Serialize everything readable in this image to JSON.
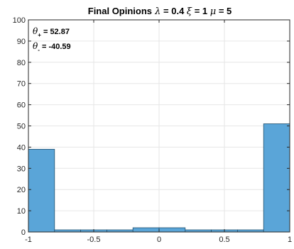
{
  "chart_data": {
    "type": "bar",
    "title_parts": [
      {
        "text": "Final Opinions",
        "greek": false
      },
      {
        "text": "  λ",
        "greek": true
      },
      {
        "text": " = 0.4 ",
        "greek": false
      },
      {
        "text": "ξ",
        "greek": true
      },
      {
        "text": " = 1 ",
        "greek": false
      },
      {
        "text": "μ",
        "greek": true
      },
      {
        "text": " = 5",
        "greek": false
      }
    ],
    "xlim": [
      -1,
      1
    ],
    "ylim": [
      0,
      100
    ],
    "xticks": [
      -1,
      -0.5,
      0,
      0.5,
      1
    ],
    "xtick_labels": [
      "-1",
      "-0.5",
      "0",
      "0.5",
      "1"
    ],
    "yticks": [
      0,
      10,
      20,
      30,
      40,
      50,
      60,
      70,
      80,
      90,
      100
    ],
    "ytick_labels": [
      "0",
      "10",
      "20",
      "30",
      "40",
      "50",
      "60",
      "70",
      "80",
      "90",
      "100"
    ],
    "grid": true,
    "bins": [
      {
        "x0": -1.0,
        "x1": -0.8,
        "value": 39
      },
      {
        "x0": -0.8,
        "x1": -0.6,
        "value": 1
      },
      {
        "x0": -0.6,
        "x1": -0.4,
        "value": 1
      },
      {
        "x0": -0.4,
        "x1": -0.2,
        "value": 1
      },
      {
        "x0": -0.2,
        "x1": 0.0,
        "value": 2
      },
      {
        "x0": 0.0,
        "x1": 0.2,
        "value": 2
      },
      {
        "x0": 0.2,
        "x1": 0.4,
        "value": 1
      },
      {
        "x0": 0.4,
        "x1": 0.6,
        "value": 1
      },
      {
        "x0": 0.6,
        "x1": 0.8,
        "value": 1
      },
      {
        "x0": 0.8,
        "x1": 1.0,
        "value": 51
      }
    ],
    "annotations": [
      {
        "symbol": "θ",
        "subscript": "+",
        "text": " = 52.87"
      },
      {
        "symbol": "θ",
        "subscript": "-",
        "text": " = -40.59"
      }
    ],
    "bar_color": "#5aa5d8",
    "bar_edge_color": "#1f4f6e"
  }
}
